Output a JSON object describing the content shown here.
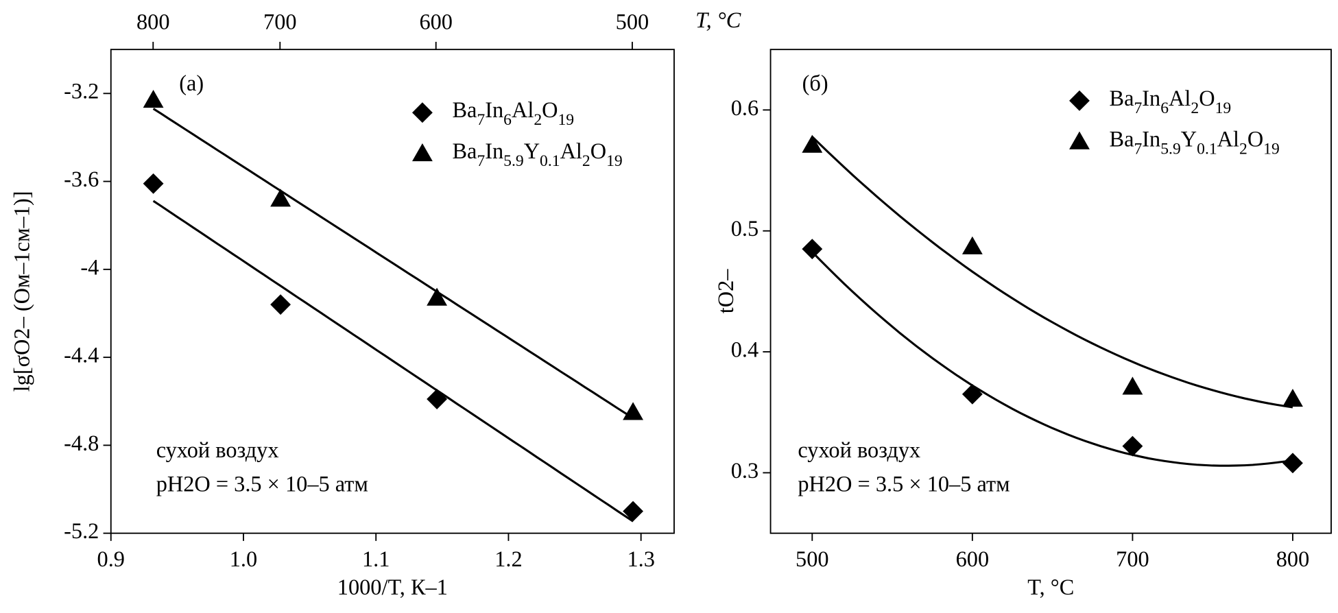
{
  "chart_data": [
    {
      "type": "scatter",
      "label": "(a)",
      "xlabel": "1000/T, К–1",
      "ylabel": "lg[σO2– (Ом–1см–1)]",
      "x2label": "T, °C",
      "xlim": [
        0.9,
        1.325
      ],
      "ylim": [
        -5.2,
        -3.0
      ],
      "xticks": [
        {
          "value": 0.9,
          "label": "0.9"
        },
        {
          "value": 1,
          "label": "1.0"
        },
        1.1,
        1.2,
        1.3
      ],
      "yticks": [
        -3.2,
        -3.6,
        -4.0,
        -4.4,
        -4.8,
        -5.2
      ],
      "x2ticks": [
        800,
        700,
        600,
        500
      ],
      "fit": "linear",
      "annotations": [
        "сухой воздух",
        "pH2O = 3.5 × 10–5 атм"
      ],
      "series": [
        {
          "name": "Ba7In6Al2O19",
          "marker": "diamond",
          "color": "#000000",
          "x": [
            0.932,
            1.028,
            1.146,
            1.294
          ],
          "values": [
            -3.61,
            -4.16,
            -4.59,
            -5.1
          ]
        },
        {
          "name": "Ba7In5.9Y0.1Al2O19",
          "marker": "triangle",
          "color": "#000000",
          "x": [
            0.932,
            1.028,
            1.146,
            1.294
          ],
          "values": [
            -3.23,
            -3.68,
            -4.13,
            -4.65
          ]
        }
      ]
    },
    {
      "type": "scatter",
      "label": "(б)",
      "xlabel": "T, °C",
      "ylabel": "tO2–",
      "xlim": [
        474,
        824
      ],
      "ylim": [
        0.25,
        0.65
      ],
      "xticks": [
        500,
        600,
        700,
        800
      ],
      "yticks": [
        0.3,
        0.4,
        0.5,
        0.6
      ],
      "fit": "quadratic",
      "annotations": [
        "сухой воздух",
        "pH2O = 3.5 × 10–5 атм"
      ],
      "series": [
        {
          "name": "Ba7In6Al2O19",
          "marker": "diamond",
          "color": "#000000",
          "x": [
            500,
            600,
            700,
            800
          ],
          "values": [
            0.485,
            0.365,
            0.322,
            0.308
          ]
        },
        {
          "name": "Ba7In5.9Y0.1Al2O19",
          "marker": "triangle",
          "color": "#000000",
          "x": [
            500,
            600,
            700,
            800
          ],
          "values": [
            0.571,
            0.487,
            0.371,
            0.361
          ]
        }
      ]
    }
  ]
}
